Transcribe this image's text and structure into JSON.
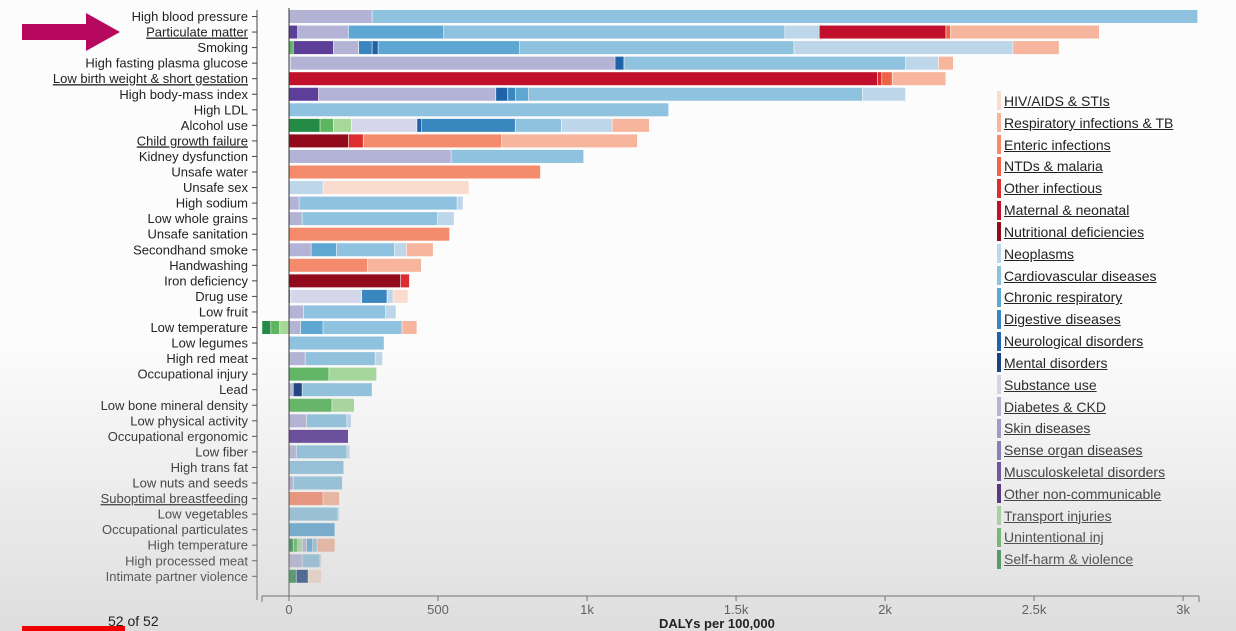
{
  "chart_data": {
    "type": "bar",
    "stacked": true,
    "orientation": "horizontal",
    "xlabel": "DALYs per 100,000",
    "xlim": [
      -50,
      3050
    ],
    "xticks": [
      0,
      500,
      1000,
      1500,
      2000,
      2500,
      3000
    ],
    "xtick_labels": [
      "0",
      "500",
      "1k",
      "1.5k",
      "2k",
      "2.5k",
      "3k"
    ],
    "legend_placement": "right",
    "underlined_categories": [
      "Particulate matter",
      "Low birth weight & short gestation",
      "Child growth failure",
      "Suboptimal breastfeeding"
    ],
    "causes": [
      {
        "name": "HIV/AIDS & STIs",
        "color": "#f9dccd"
      },
      {
        "name": "Respiratory infections & TB",
        "color": "#f6b59c"
      },
      {
        "name": "Enteric infections",
        "color": "#f48b6c"
      },
      {
        "name": "NTDs & malaria",
        "color": "#ec6547"
      },
      {
        "name": "Other infectious",
        "color": "#dc2e2e"
      },
      {
        "name": "Maternal & neonatal",
        "color": "#c0102c"
      },
      {
        "name": "Nutritional deficiencies",
        "color": "#920b1c"
      },
      {
        "name": "Neoplasms",
        "color": "#bed6ea"
      },
      {
        "name": "Cardiovascular diseases",
        "color": "#8fc2de"
      },
      {
        "name": "Chronic respiratory",
        "color": "#5ea7d3"
      },
      {
        "name": "Digestive diseases",
        "color": "#3a87c0"
      },
      {
        "name": "Neurological disorders",
        "color": "#1f62a8"
      },
      {
        "name": "Mental disorders",
        "color": "#153d7d"
      },
      {
        "name": "Substance use",
        "color": "#d6d6ea"
      },
      {
        "name": "Diabetes & CKD",
        "color": "#b3b3d6"
      },
      {
        "name": "Skin diseases",
        "color": "#9898c6"
      },
      {
        "name": "Sense organ diseases",
        "color": "#7a78b6"
      },
      {
        "name": "Musculoskeletal disorders",
        "color": "#5d3e98"
      },
      {
        "name": "Other non-communicable",
        "color": "#3b0f70"
      },
      {
        "name": "Transport injuries",
        "color": "#a6d89a"
      },
      {
        "name": "Unintentional inj",
        "color": "#5db560"
      },
      {
        "name": "Self-harm & violence",
        "color": "#238b45"
      }
    ],
    "risks": [
      {
        "name": "High blood pressure",
        "segments": [
          [
            "Diabetes & CKD",
            280
          ],
          [
            "Cardiovascular diseases",
            2770
          ]
        ]
      },
      {
        "name": "Particulate matter",
        "segments": [
          [
            "Musculoskeletal disorders",
            30
          ],
          [
            "Diabetes & CKD",
            170
          ],
          [
            "Chronic respiratory",
            320
          ],
          [
            "Cardiovascular diseases",
            1145
          ],
          [
            "Neoplasms",
            115
          ],
          [
            "Maternal & neonatal",
            425
          ],
          [
            "NTDs & malaria",
            15
          ],
          [
            "Respiratory infections & TB",
            500
          ]
        ]
      },
      {
        "name": "Smoking",
        "segments": [
          [
            "Unintentional inj",
            15
          ],
          [
            "Musculoskeletal disorders",
            135
          ],
          [
            "Diabetes & CKD",
            85
          ],
          [
            "Digestive diseases",
            45
          ],
          [
            "Neurological disorders",
            20
          ],
          [
            "Chronic respiratory",
            475
          ],
          [
            "Cardiovascular diseases",
            920
          ],
          [
            "Neoplasms",
            735
          ],
          [
            "Respiratory infections & TB",
            155
          ]
        ]
      },
      {
        "name": "High fasting plasma glucose",
        "segments": [
          [
            "Substance use",
            5
          ],
          [
            "Diabetes & CKD",
            1090
          ],
          [
            "Neurological disorders",
            30
          ],
          [
            "Cardiovascular diseases",
            945
          ],
          [
            "Neoplasms",
            110
          ],
          [
            "Respiratory infections & TB",
            50
          ]
        ]
      },
      {
        "name": "Low birth weight & short gestation",
        "segments": [
          [
            "Maternal & neonatal",
            1975
          ],
          [
            "Other infectious",
            15
          ],
          [
            "NTDs & malaria",
            35
          ],
          [
            "Respiratory infections & TB",
            180
          ]
        ]
      },
      {
        "name": "High body-mass index",
        "segments": [
          [
            "Musculoskeletal disorders",
            100
          ],
          [
            "Diabetes & CKD",
            595
          ],
          [
            "Neurological disorders",
            40
          ],
          [
            "Digestive diseases",
            25
          ],
          [
            "Chronic respiratory",
            45
          ],
          [
            "Cardiovascular diseases",
            1120
          ],
          [
            "Neoplasms",
            145
          ]
        ]
      },
      {
        "name": "High LDL",
        "segments": [
          [
            "Cardiovascular diseases",
            1275
          ]
        ]
      },
      {
        "name": "Alcohol use",
        "segments": [
          [
            "Self-harm & violence",
            105
          ],
          [
            "Unintentional inj",
            45
          ],
          [
            "Transport injuries",
            60
          ],
          [
            "Substance use",
            220
          ],
          [
            "Neurological disorders",
            15
          ],
          [
            "Digestive diseases",
            315
          ],
          [
            "Cardiovascular diseases",
            155
          ],
          [
            "Neoplasms",
            170
          ],
          [
            "Respiratory infections & TB",
            125
          ]
        ]
      },
      {
        "name": "Child growth failure",
        "segments": [
          [
            "Nutritional deficiencies",
            200
          ],
          [
            "Other infectious",
            50
          ],
          [
            "Enteric infections",
            465
          ],
          [
            "Respiratory infections & TB",
            455
          ]
        ]
      },
      {
        "name": "Kidney dysfunction",
        "segments": [
          [
            "Diabetes & CKD",
            545
          ],
          [
            "Cardiovascular diseases",
            445
          ]
        ]
      },
      {
        "name": "Unsafe water",
        "segments": [
          [
            "Enteric infections",
            845
          ]
        ]
      },
      {
        "name": "Unsafe sex",
        "segments": [
          [
            "Neoplasms",
            115
          ],
          [
            "HIV/AIDS & STIs",
            490
          ]
        ]
      },
      {
        "name": "High sodium",
        "segments": [
          [
            "Diabetes & CKD",
            35
          ],
          [
            "Cardiovascular diseases",
            530
          ],
          [
            "Neoplasms",
            20
          ]
        ]
      },
      {
        "name": "Low whole grains",
        "segments": [
          [
            "Diabetes & CKD",
            45
          ],
          [
            "Cardiovascular diseases",
            455
          ],
          [
            "Neoplasms",
            55
          ]
        ]
      },
      {
        "name": "Unsafe sanitation",
        "segments": [
          [
            "Enteric infections",
            540
          ]
        ]
      },
      {
        "name": "Secondhand smoke",
        "segments": [
          [
            "Diabetes & CKD",
            75
          ],
          [
            "Chronic respiratory",
            85
          ],
          [
            "Cardiovascular diseases",
            195
          ],
          [
            "Neoplasms",
            40
          ],
          [
            "Respiratory infections & TB",
            90
          ]
        ]
      },
      {
        "name": "Handwashing",
        "segments": [
          [
            "Enteric infections",
            265
          ],
          [
            "Respiratory infections & TB",
            180
          ]
        ]
      },
      {
        "name": "Iron deficiency",
        "segments": [
          [
            "Nutritional deficiencies",
            375
          ],
          [
            "Other infectious",
            30
          ]
        ]
      },
      {
        "name": "Drug use",
        "segments": [
          [
            "Self-harm & violence",
            5
          ],
          [
            "Substance use",
            240
          ],
          [
            "Digestive diseases",
            85
          ],
          [
            "Neoplasms",
            20
          ],
          [
            "HIV/AIDS & STIs",
            50
          ]
        ]
      },
      {
        "name": "Low fruit",
        "segments": [
          [
            "Diabetes & CKD",
            50
          ],
          [
            "Cardiovascular diseases",
            275
          ],
          [
            "Neoplasms",
            35
          ]
        ]
      },
      {
        "name": "Low temperature",
        "negative": [
          [
            "Transport injuries",
            30
          ],
          [
            "Unintentional inj",
            30
          ],
          [
            "Self-harm & violence",
            30
          ]
        ],
        "segments": [
          [
            "Diabetes & CKD",
            40
          ],
          [
            "Chronic respiratory",
            75
          ],
          [
            "Cardiovascular diseases",
            265
          ],
          [
            "Respiratory infections & TB",
            50
          ]
        ]
      },
      {
        "name": "Low legumes",
        "segments": [
          [
            "Cardiovascular diseases",
            320
          ]
        ]
      },
      {
        "name": "High red meat",
        "segments": [
          [
            "Diabetes & CKD",
            55
          ],
          [
            "Cardiovascular diseases",
            235
          ],
          [
            "Neoplasms",
            25
          ]
        ]
      },
      {
        "name": "Occupational injury",
        "segments": [
          [
            "Unintentional inj",
            135
          ],
          [
            "Transport injuries",
            160
          ]
        ]
      },
      {
        "name": "Lead",
        "segments": [
          [
            "Diabetes & CKD",
            15
          ],
          [
            "Mental disorders",
            30
          ],
          [
            "Cardiovascular diseases",
            235
          ]
        ]
      },
      {
        "name": "Low bone mineral density",
        "segments": [
          [
            "Unintentional inj",
            145
          ],
          [
            "Transport injuries",
            75
          ]
        ]
      },
      {
        "name": "Low physical activity",
        "segments": [
          [
            "Diabetes & CKD",
            60
          ],
          [
            "Cardiovascular diseases",
            135
          ],
          [
            "Neoplasms",
            15
          ]
        ]
      },
      {
        "name": "Occupational ergonomic",
        "segments": [
          [
            "Musculoskeletal disorders",
            200
          ]
        ]
      },
      {
        "name": "Low fiber",
        "segments": [
          [
            "Diabetes & CKD",
            25
          ],
          [
            "Cardiovascular diseases",
            170
          ],
          [
            "Neoplasms",
            10
          ]
        ]
      },
      {
        "name": "High trans fat",
        "segments": [
          [
            "Cardiovascular diseases",
            185
          ]
        ]
      },
      {
        "name": "Low nuts and seeds",
        "segments": [
          [
            "Diabetes & CKD",
            15
          ],
          [
            "Cardiovascular diseases",
            165
          ]
        ]
      },
      {
        "name": "Suboptimal breastfeeding",
        "segments": [
          [
            "Enteric infections",
            115
          ],
          [
            "Respiratory infections & TB",
            55
          ]
        ]
      },
      {
        "name": "Low vegetables",
        "segments": [
          [
            "Cardiovascular diseases",
            165
          ],
          [
            "Neoplasms",
            5
          ]
        ]
      },
      {
        "name": "Occupational particulates",
        "segments": [
          [
            "Chronic respiratory",
            155
          ]
        ]
      },
      {
        "name": "High temperature",
        "segments": [
          [
            "Self-harm & violence",
            15
          ],
          [
            "Unintentional inj",
            15
          ],
          [
            "Transport injuries",
            15
          ],
          [
            "Diabetes & CKD",
            15
          ],
          [
            "Chronic respiratory",
            20
          ],
          [
            "Cardiovascular diseases",
            15
          ],
          [
            "Respiratory infections & TB",
            60
          ]
        ]
      },
      {
        "name": "High processed meat",
        "segments": [
          [
            "Diabetes & CKD",
            45
          ],
          [
            "Cardiovascular diseases",
            60
          ],
          [
            "Neoplasms",
            5
          ]
        ]
      },
      {
        "name": "Intimate partner violence",
        "segments": [
          [
            "Self-harm & violence",
            25
          ],
          [
            "Mental disorders",
            40
          ],
          [
            "HIV/AIDS & STIs",
            45
          ]
        ]
      }
    ]
  },
  "ui": {
    "counter": "52 of 52",
    "progress_fraction": 1.0,
    "highlighted_risk": "Particulate matter"
  }
}
